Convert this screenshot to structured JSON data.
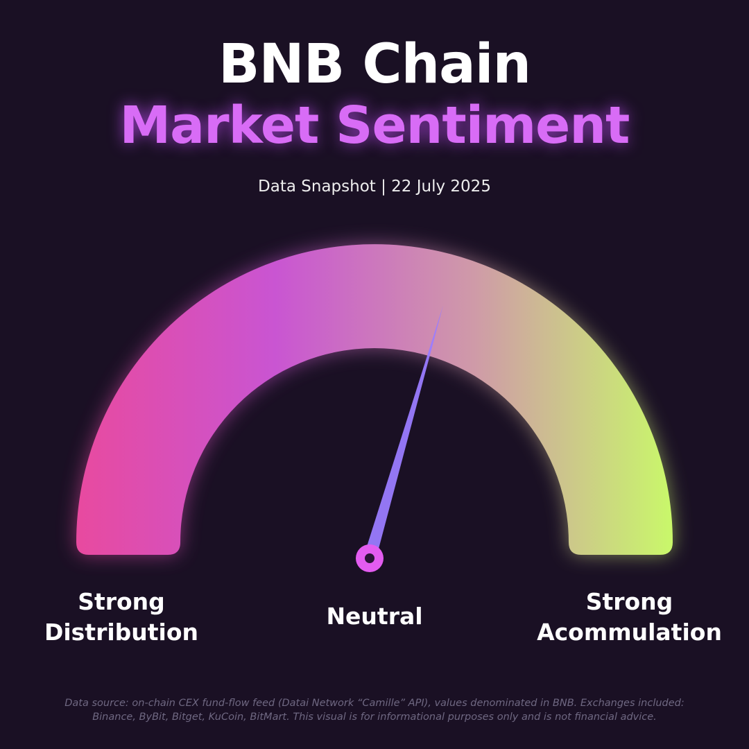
{
  "chart_data": {
    "type": "gauge",
    "title": "BNB Chain",
    "subtitle": "Market Sentiment",
    "caption": "Data Snapshot | 22 July 2025",
    "categories": [
      "Strong Distribution",
      "Neutral",
      "Strong Acommulation"
    ],
    "ylim": [
      0,
      100
    ],
    "value": 59,
    "colors": [
      "#e84a9f",
      "#c955d2",
      "#cf9aa8",
      "#c9f86a"
    ],
    "note": "Data source: on-chain CEX fund-flow feed (Datai Network “Camille” API), values denominated in BNB. Exchanges included: Binance, ByBit, Bitget, KuCoin, BitMart. This visual is for informational purposes only and is not financial advice."
  }
}
